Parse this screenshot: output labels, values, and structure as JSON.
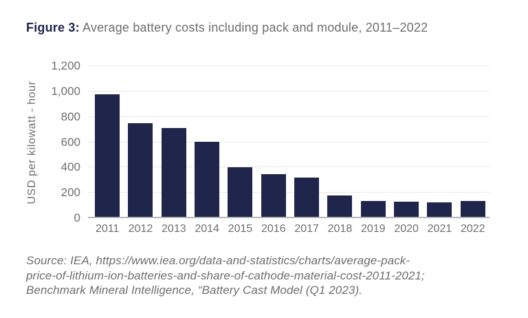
{
  "figure": {
    "label": "Figure 3:",
    "title": " Average battery costs including pack and module, 2011–2022"
  },
  "chart_data": {
    "type": "bar",
    "title": "Average battery costs including pack and module, 2011–2022",
    "categories": [
      "2011",
      "2012",
      "2013",
      "2014",
      "2015",
      "2016",
      "2017",
      "2018",
      "2019",
      "2020",
      "2021",
      "2022"
    ],
    "values": [
      980,
      748,
      710,
      605,
      400,
      350,
      318,
      178,
      138,
      130,
      123,
      138
    ],
    "xlabel": "",
    "ylabel": "USD per kilowatt - hour",
    "ylim": [
      0,
      1200
    ],
    "yticks": [
      0,
      200,
      400,
      600,
      800,
      1000,
      1200
    ],
    "ytick_labels": [
      "0",
      "200",
      "400",
      "600",
      "800",
      "1,000",
      "1,200"
    ],
    "grid": true,
    "legend_position": "none",
    "bar_color": "#20254c"
  },
  "source": {
    "lines": [
      "Source: IEA, https://www.iea.org/data-and-statistics/charts/average-pack-",
      "price-of-lithium-ion-batteries-and-share-of-cathode-material-cost-2011-2021;",
      "Benchmark Mineral Intelligence, “Battery Cast Model (Q1 2023)."
    ]
  },
  "colors": {
    "navy": "#20254c",
    "text_gray": "#6d6e71",
    "gridline": "#e7e8e9",
    "axis_line": "#b4b6b9",
    "background": "#ffffff"
  }
}
